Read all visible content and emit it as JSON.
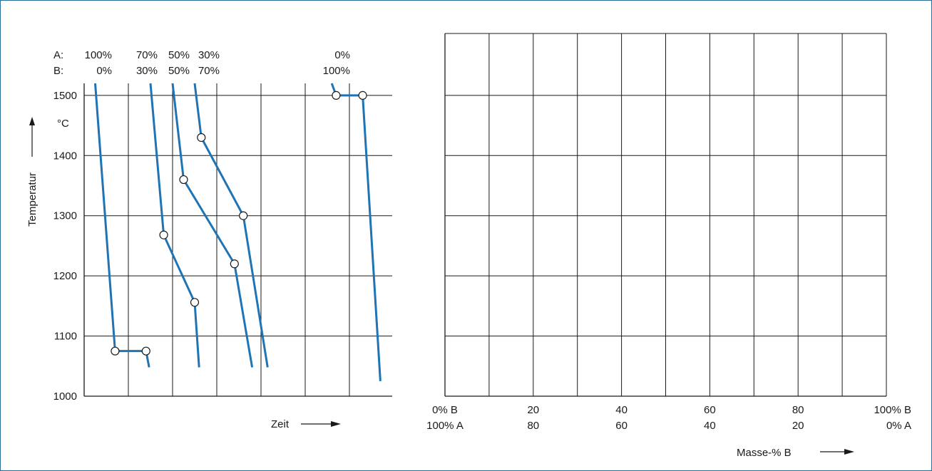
{
  "colors": {
    "curve": "#1e74b4",
    "grid": "#1a1a1a",
    "frame": "#2a6f9a",
    "text": "#1a1a1a"
  },
  "chart_data": [
    {
      "type": "line",
      "title": "",
      "xlabel": "Zeit",
      "ylabel": "Temperatur",
      "yunit": "°C",
      "ylim": [
        1000,
        1520
      ],
      "yticks": [
        1000,
        1100,
        1200,
        1300,
        1400,
        1500
      ],
      "grid": true,
      "composition_row_labels": [
        "A:",
        "B:"
      ],
      "series": [
        {
          "composition_A": "100%",
          "composition_B": "0%",
          "points": [
            [
              0.25,
              1520
            ],
            [
              0.7,
              1075
            ]
          ],
          "markers": [
            [
              0.7,
              1075
            ],
            [
              1.4,
              1075
            ]
          ],
          "tail": [
            [
              0.7,
              1075
            ],
            [
              1.4,
              1075
            ],
            [
              1.47,
              1048
            ]
          ]
        },
        {
          "composition_A": "70%",
          "composition_B": "30%",
          "points": [
            [
              1.5,
              1520
            ],
            [
              1.8,
              1268
            ],
            [
              2.5,
              1156
            ],
            [
              2.6,
              1048
            ]
          ],
          "markers": [
            [
              1.8,
              1268
            ],
            [
              2.5,
              1156
            ]
          ]
        },
        {
          "composition_A": "50%",
          "composition_B": "50%",
          "points": [
            [
              2.0,
              1520
            ],
            [
              2.25,
              1360
            ],
            [
              3.4,
              1220
            ],
            [
              3.8,
              1048
            ]
          ],
          "markers": [
            [
              2.25,
              1360
            ],
            [
              3.4,
              1220
            ]
          ]
        },
        {
          "composition_A": "30%",
          "composition_B": "70%",
          "points": [
            [
              2.5,
              1520
            ],
            [
              2.65,
              1430
            ],
            [
              3.6,
              1300
            ],
            [
              4.15,
              1048
            ]
          ],
          "markers": [
            [
              2.65,
              1430
            ],
            [
              3.6,
              1300
            ]
          ]
        },
        {
          "composition_A": "0%",
          "composition_B": "100%",
          "points": [
            [
              5.6,
              1520
            ],
            [
              5.7,
              1500
            ],
            [
              6.3,
              1500
            ],
            [
              6.7,
              1025
            ]
          ],
          "markers": [
            [
              5.7,
              1500
            ],
            [
              6.3,
              1500
            ]
          ]
        }
      ]
    },
    {
      "type": "table",
      "title": "",
      "xlabel": "Masse-% B",
      "x_tick_labels_top": [
        "0% B",
        "20",
        "40",
        "60",
        "80",
        "100% B"
      ],
      "x_tick_labels_bottom": [
        "100% A",
        "80",
        "60",
        "40",
        "20",
        "0% A"
      ],
      "x_ticks": [
        0,
        20,
        40,
        60,
        80,
        100
      ],
      "x_grid": [
        0,
        10,
        20,
        30,
        40,
        50,
        60,
        70,
        80,
        90,
        100
      ],
      "ylim": [
        1000,
        1520
      ],
      "y_grid": [
        1000,
        1100,
        1200,
        1300,
        1400,
        1500
      ],
      "grid": true,
      "values": []
    }
  ]
}
